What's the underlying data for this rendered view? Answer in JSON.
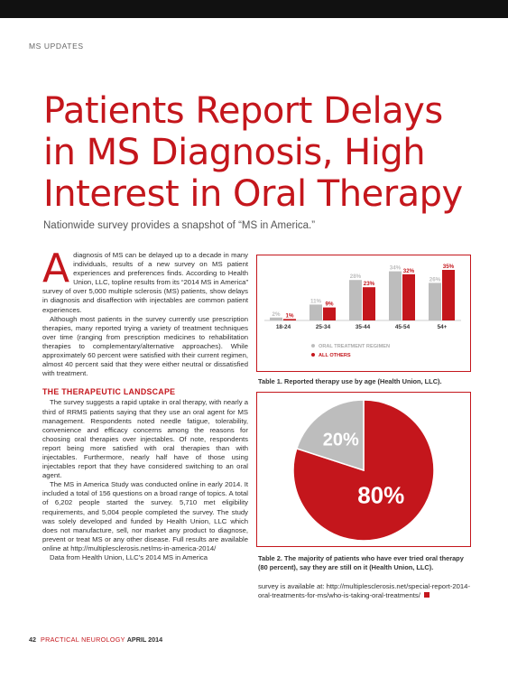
{
  "header": {
    "section": "MS UPDATES"
  },
  "article": {
    "title": "Patients Report Delays in MS Diagnosis, High Interest in Oral Therapy",
    "subtitle": "Nationwide survey provides a snapshot of “MS in America.”",
    "dropcap": "A",
    "p1": "diagnosis of MS can be delayed up to a decade in many individuals, results of a new survey on MS patient experiences and preferences finds. According to Health Union, LLC, topline results from its “2014 MS in America” survey of over 5,000 multiple sclerosis (MS) patients, show delays in diagnosis and disaffection with injectables are common patient experiences.",
    "p2": "Although most patients in the survey currently use prescription therapies, many reported trying a variety of treatment techniques over time (ranging from prescription medicines to rehabilitation therapies to complementary/alternative approaches). While approximately 60 percent were satisfied with their current regimen, almost 40 percent said that they were either neutral or dissatisfied with treatment.",
    "heading": "THE THERAPEUTIC LANDSCAPE",
    "p3": "The survey suggests a rapid uptake in oral therapy, with nearly a third of RRMS patients saying that they use an oral agent for MS management. Respondents noted needle fatigue, tolerability, convenience and efficacy concerns among the reasons for choosing oral therapies over injectables. Of note, respondents report being more satisfied with oral therapies than with injectables. Furthermore, nearly half have of those using injectables report that they have considered switching to an oral agent.",
    "p4": "The MS in America Study was conducted online in early 2014. It included a total of 156 questions on a broad range of topics. A total of 6,202 people started the survey. 5,710 met eligibility requirements, and 5,004 people completed the survey. The study was solely developed and funded by Health Union, LLC which does not manufacture, sell, nor market any product to diagnose, prevent or treat MS or any other disease. Full results are available online at http://multiplesclerosis.net/ms-in-america-2014/",
    "p5": "Data from Health Union, LLC’s 2014 MS in America",
    "p6": "survey is available at: http://multiplesclerosis.net/special-report-2014-oral-treatments-for-ms/who-is-taking-oral-treatments/"
  },
  "captions": {
    "table1": "Table 1. Reported therapy use by age (Health Union, LLC).",
    "table2": "Table 2. The majority of patients who have ever tried oral therapy (80 percent), say they are still on it (Health Union, LLC)."
  },
  "footer": {
    "page": "42",
    "publication": "PRACTICAL NEUROLOGY",
    "date": "APRIL 2014"
  },
  "colors": {
    "accent": "#c4161c",
    "gray": "#bdbdbd"
  },
  "chart_data": [
    {
      "type": "bar",
      "categories": [
        "18-24",
        "25-34",
        "35-44",
        "45-54",
        "54+"
      ],
      "series": [
        {
          "name": "ORAL TREATMENT REGIMEN",
          "values": [
            2,
            11,
            28,
            34,
            26
          ],
          "labels": [
            "2%",
            "11%",
            "28%",
            "34%",
            "26%"
          ],
          "color": "#bdbdbd"
        },
        {
          "name": "ALL OTHERS",
          "values": [
            1,
            9,
            23,
            32,
            35
          ],
          "labels": [
            "1%",
            "9%",
            "23%",
            "32%",
            "35%"
          ],
          "color": "#c4161c"
        }
      ],
      "legend": "bottom",
      "grid": false
    },
    {
      "type": "pie",
      "slices": [
        {
          "label": "80%",
          "value": 80,
          "color": "#c4161c"
        },
        {
          "label": "20%",
          "value": 20,
          "color": "#bdbdbd"
        }
      ]
    }
  ]
}
